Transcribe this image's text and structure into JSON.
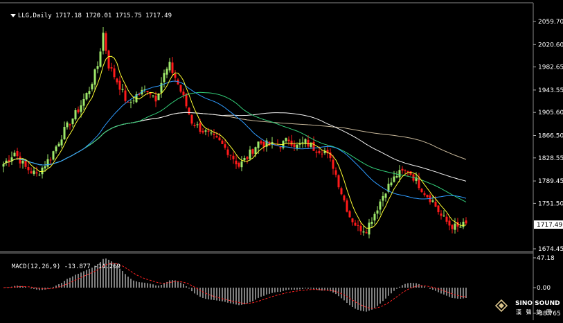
{
  "header": {
    "symbol": "LLG,Daily",
    "ohlc": "1717.18 1720.01 1715.75 1717.49"
  },
  "price_axis": {
    "ticks": [
      "2059.70",
      "2020.60",
      "1982.65",
      "1943.55",
      "1905.60",
      "1866.50",
      "1828.55",
      "1789.45",
      "1751.50",
      "1717.49",
      "1674.45"
    ],
    "current": "1717.49"
  },
  "macd": {
    "label": "MACD(12,26,9) -13.877 -14.269",
    "ticks": [
      "47.18",
      "0.00",
      "-38.765"
    ]
  },
  "logo": {
    "brand": "SINO SOUND",
    "sub": "漢 聲 集 團"
  },
  "colors": {
    "background": "#000000",
    "bull": "#9ee86a",
    "bear": "#ff1a1a",
    "ma_fast": "#ffff33",
    "ma_blue": "#2e9bff",
    "ma_green": "#33d07a",
    "ma_white": "#f5f5f5",
    "ma_tan": "#c8b89a",
    "grid": "#777777",
    "macd_hist": "#ffffff",
    "macd_signal": "#ff2222"
  }
}
